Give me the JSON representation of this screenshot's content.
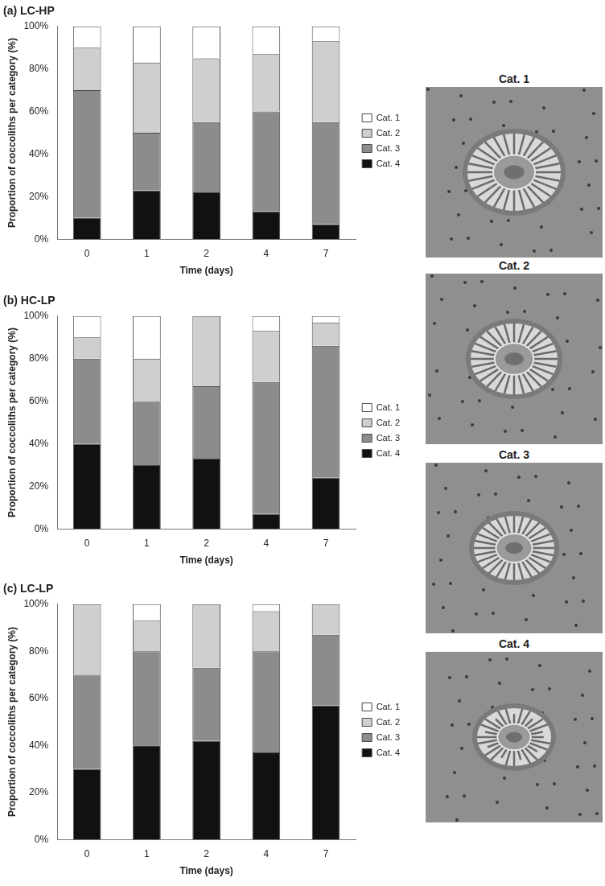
{
  "chart_data": [
    {
      "type": "bar",
      "title": "(a) LC-HP",
      "stacked": true,
      "legend": "right",
      "grid": false,
      "x_label": "Time (days)",
      "y_label": "Proportion of coccoliths per category (%)",
      "categories": [
        "0",
        "1",
        "2",
        "4",
        "7"
      ],
      "ylim": [
        0,
        100
      ],
      "yticks": [
        {
          "value": 0,
          "label": "0%"
        },
        {
          "value": 20,
          "label": "20%"
        },
        {
          "value": 40,
          "label": "40%"
        },
        {
          "value": 60,
          "label": "60%"
        },
        {
          "value": 80,
          "label": "80%"
        },
        {
          "value": 100,
          "label": "100%"
        }
      ],
      "series": [
        {
          "name": "Cat. 1",
          "color": "#ffffff",
          "values": [
            10,
            17,
            15,
            13,
            7
          ]
        },
        {
          "name": "Cat. 2",
          "color": "#cfcfcf",
          "values": [
            20,
            33,
            30,
            27,
            38
          ]
        },
        {
          "name": "Cat. 3",
          "color": "#8c8c8c",
          "values": [
            60,
            27,
            33,
            47,
            48
          ]
        },
        {
          "name": "Cat. 4",
          "color": "#111111",
          "values": [
            10,
            23,
            22,
            13,
            7
          ]
        }
      ]
    },
    {
      "type": "bar",
      "title": "(b) HC-LP",
      "stacked": true,
      "legend": "right",
      "grid": false,
      "x_label": "Time (days)",
      "y_label": "Proportion of coccoliths per category (%)",
      "categories": [
        "0",
        "1",
        "2",
        "4",
        "7"
      ],
      "ylim": [
        0,
        100
      ],
      "yticks": [
        {
          "value": 0,
          "label": "0%"
        },
        {
          "value": 20,
          "label": "20%"
        },
        {
          "value": 40,
          "label": "40%"
        },
        {
          "value": 60,
          "label": "60%"
        },
        {
          "value": 80,
          "label": "80%"
        },
        {
          "value": 100,
          "label": "100%"
        }
      ],
      "series": [
        {
          "name": "Cat. 1",
          "color": "#ffffff",
          "values": [
            10,
            20,
            0,
            7,
            3
          ]
        },
        {
          "name": "Cat. 2",
          "color": "#cfcfcf",
          "values": [
            10,
            20,
            33,
            24,
            11
          ]
        },
        {
          "name": "Cat. 3",
          "color": "#8c8c8c",
          "values": [
            40,
            30,
            34,
            62,
            62
          ]
        },
        {
          "name": "Cat. 4",
          "color": "#111111",
          "values": [
            40,
            30,
            33,
            7,
            24
          ]
        }
      ]
    },
    {
      "type": "bar",
      "title": "(c) LC-LP",
      "stacked": true,
      "legend": "right",
      "grid": false,
      "x_label": "Time (days)",
      "y_label": "Proportion of coccoliths per category (%)",
      "categories": [
        "0",
        "1",
        "2",
        "4",
        "7"
      ],
      "ylim": [
        0,
        100
      ],
      "yticks": [
        {
          "value": 0,
          "label": "0%"
        },
        {
          "value": 20,
          "label": "20%"
        },
        {
          "value": 40,
          "label": "40%"
        },
        {
          "value": 60,
          "label": "60%"
        },
        {
          "value": 80,
          "label": "80%"
        },
        {
          "value": 100,
          "label": "100%"
        }
      ],
      "series": [
        {
          "name": "Cat. 1",
          "color": "#ffffff",
          "values": [
            0,
            7,
            0,
            3,
            0
          ]
        },
        {
          "name": "Cat. 2",
          "color": "#cfcfcf",
          "values": [
            30,
            13,
            27,
            17,
            13
          ]
        },
        {
          "name": "Cat. 3",
          "color": "#8c8c8c",
          "values": [
            40,
            40,
            31,
            43,
            30
          ]
        },
        {
          "name": "Cat. 4",
          "color": "#111111",
          "values": [
            30,
            40,
            42,
            37,
            57
          ]
        }
      ]
    }
  ],
  "micrographs": {
    "labels": [
      "Cat. 1",
      "Cat. 2",
      "Cat. 3",
      "Cat. 4"
    ]
  }
}
